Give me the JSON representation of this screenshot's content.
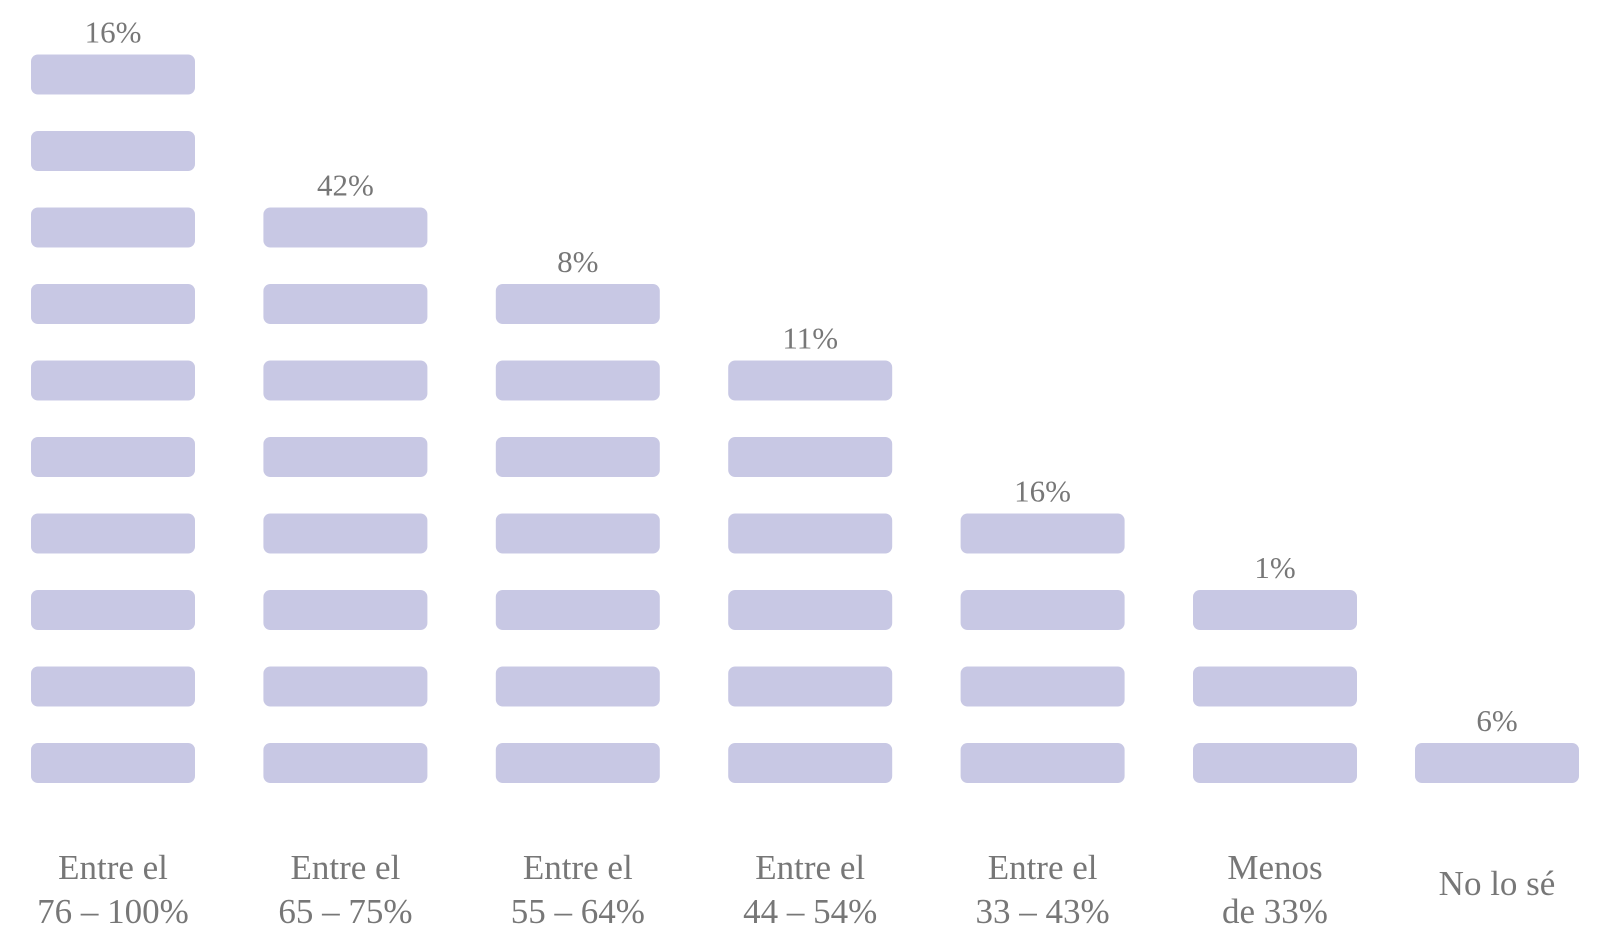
{
  "chart_data": {
    "type": "pictogram",
    "categories": [
      [
        "Entre el",
        "76 – 100%"
      ],
      [
        "Entre el",
        "65 – 75%"
      ],
      [
        "Entre el",
        "55 – 64%"
      ],
      [
        "Entre el",
        "44 – 54%"
      ],
      [
        "Entre el",
        "33 – 43%"
      ],
      [
        "Menos",
        "de 33%"
      ],
      [
        "No lo sé"
      ]
    ],
    "values": [
      16,
      42,
      8,
      11,
      16,
      1,
      6
    ],
    "value_labels": [
      "16%",
      "42%",
      "8%",
      "11%",
      "16%",
      "1%",
      "6%"
    ],
    "counts": [
      10,
      8,
      7,
      6,
      4,
      3,
      1
    ],
    "color": "#c8c8e4"
  }
}
